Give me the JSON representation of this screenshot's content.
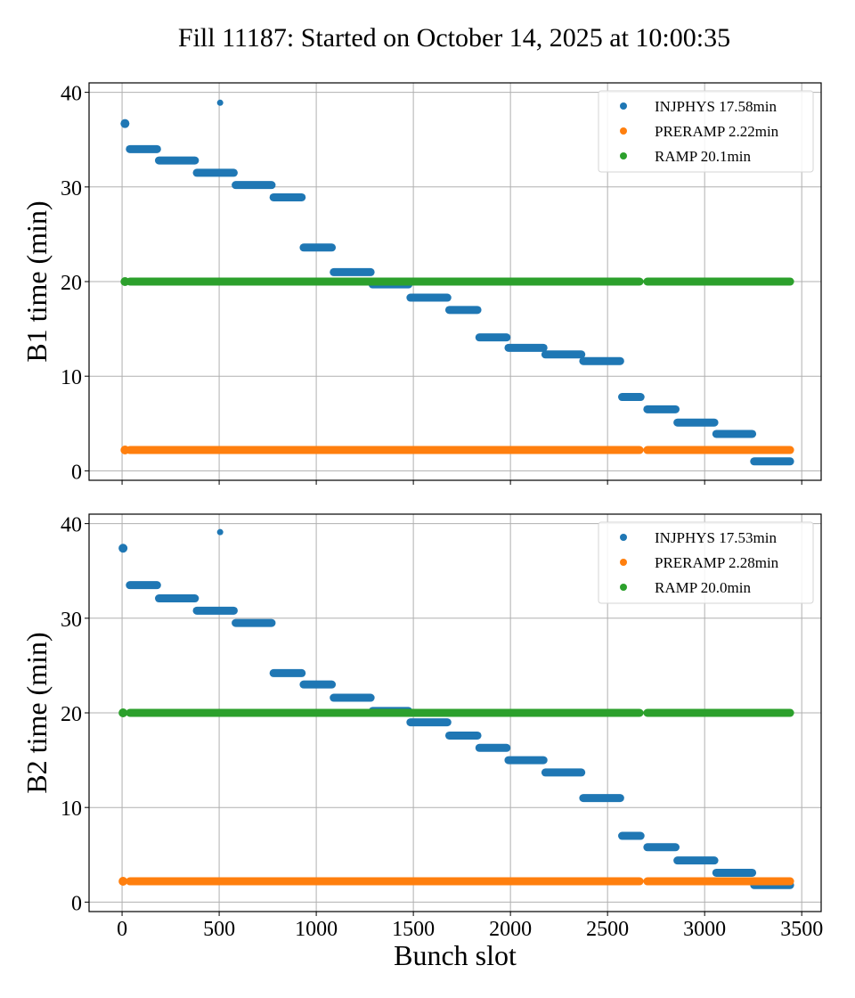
{
  "chart_data": [
    {
      "type": "scatter",
      "title": "Fill 11187: Started on October 14, 2025 at 10:00:35",
      "xlabel": "",
      "ylabel": "B1 time (min)",
      "xlim": [
        -170,
        3600
      ],
      "ylim": [
        -1,
        41
      ],
      "xticks": [
        0,
        500,
        1000,
        1500,
        2000,
        2500,
        3000,
        3500
      ],
      "xtick_labels_visible": false,
      "yticks": [
        0,
        10,
        20,
        30,
        40
      ],
      "grid": true,
      "legend_position": "top-right",
      "series": [
        {
          "name": "INJPHYS",
          "legend": "INJPHYS 17.58min",
          "color": "#1f77b4",
          "singles": [
            [
              15,
              36.7
            ],
            [
              505,
              38.9
            ]
          ],
          "segments": [
            [
              40,
              180,
              34.0
            ],
            [
              190,
              375,
              32.8
            ],
            [
              385,
              575,
              31.5
            ],
            [
              585,
              770,
              30.2
            ],
            [
              780,
              925,
              28.9
            ],
            [
              935,
              1080,
              23.6
            ],
            [
              1090,
              1280,
              21.0
            ],
            [
              1290,
              1475,
              19.7
            ],
            [
              1485,
              1675,
              18.3
            ],
            [
              1685,
              1830,
              17.0
            ],
            [
              1840,
              1980,
              14.1
            ],
            [
              1990,
              2170,
              13.0
            ],
            [
              2180,
              2365,
              12.3
            ],
            [
              2375,
              2565,
              11.6
            ],
            [
              2575,
              2670,
              7.8
            ],
            [
              2705,
              2850,
              6.5
            ],
            [
              2860,
              3050,
              5.1
            ],
            [
              3060,
              3245,
              3.9
            ],
            [
              3255,
              3440,
              1.0
            ]
          ]
        },
        {
          "name": "PRERAMP",
          "legend": "PRERAMP 2.22min",
          "color": "#ff7f0e",
          "singles": [
            [
              15,
              2.2
            ]
          ],
          "segments": [
            [
              40,
              2665,
              2.2
            ],
            [
              2705,
              3440,
              2.2
            ]
          ]
        },
        {
          "name": "RAMP",
          "legend": "RAMP 20.1min",
          "color": "#2ca02c",
          "singles": [
            [
              15,
              20.0
            ]
          ],
          "segments": [
            [
              40,
              2665,
              20.0
            ],
            [
              2705,
              3440,
              20.0
            ]
          ]
        }
      ]
    },
    {
      "type": "scatter",
      "title": "",
      "xlabel": "Bunch slot",
      "ylabel": "B2 time (min)",
      "xlim": [
        -170,
        3600
      ],
      "ylim": [
        -1,
        41
      ],
      "xticks": [
        0,
        500,
        1000,
        1500,
        2000,
        2500,
        3000,
        3500
      ],
      "xtick_labels": [
        "0",
        "500",
        "1000",
        "1500",
        "2000",
        "2500",
        "3000",
        "3500"
      ],
      "yticks": [
        0,
        10,
        20,
        30,
        40
      ],
      "grid": true,
      "legend_position": "top-right",
      "series": [
        {
          "name": "INJPHYS",
          "legend": "INJPHYS 17.53min",
          "color": "#1f77b4",
          "singles": [
            [
              5,
              37.4
            ],
            [
              505,
              39.1
            ]
          ],
          "segments": [
            [
              40,
              180,
              33.5
            ],
            [
              190,
              375,
              32.1
            ],
            [
              385,
              575,
              30.8
            ],
            [
              585,
              770,
              29.5
            ],
            [
              780,
              925,
              24.2
            ],
            [
              935,
              1080,
              23.0
            ],
            [
              1090,
              1280,
              21.6
            ],
            [
              1290,
              1475,
              20.2
            ],
            [
              1485,
              1675,
              19.0
            ],
            [
              1685,
              1830,
              17.6
            ],
            [
              1840,
              1980,
              16.3
            ],
            [
              1990,
              2170,
              15.0
            ],
            [
              2180,
              2365,
              13.7
            ],
            [
              2375,
              2565,
              11.0
            ],
            [
              2575,
              2670,
              7.0
            ],
            [
              2705,
              2850,
              5.8
            ],
            [
              2860,
              3050,
              4.4
            ],
            [
              3060,
              3245,
              3.1
            ],
            [
              3255,
              3440,
              1.8
            ]
          ]
        },
        {
          "name": "PRERAMP",
          "legend": "PRERAMP 2.28min",
          "color": "#ff7f0e",
          "singles": [
            [
              5,
              2.2
            ]
          ],
          "segments": [
            [
              40,
              2665,
              2.2
            ],
            [
              2705,
              3440,
              2.2
            ]
          ]
        },
        {
          "name": "RAMP",
          "legend": "RAMP 20.0min",
          "color": "#2ca02c",
          "singles": [
            [
              5,
              20.0
            ]
          ],
          "segments": [
            [
              40,
              2665,
              20.0
            ],
            [
              2705,
              3440,
              20.0
            ]
          ]
        }
      ]
    }
  ]
}
